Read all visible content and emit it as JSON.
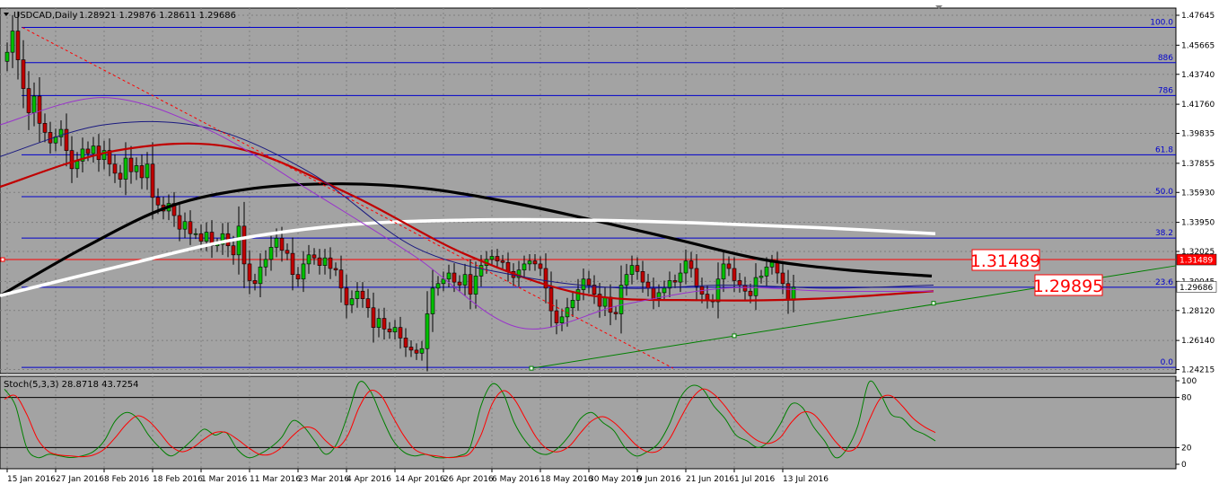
{
  "symbol_label": "USDCAD,Daily",
  "ohlc_label": "1.28921 1.29876 1.28611 1.29686",
  "colors": {
    "background": "#a3a3a3",
    "grid": "#7f7f7f",
    "bull": "#00c000",
    "bear": "#c00000",
    "fib": "#0000cc",
    "ma_black": "#000000",
    "ma_white": "#ffffff",
    "ma_red": "#c00000",
    "ma_navy": "#1a1a80",
    "ma_purple": "#9933cc",
    "trendline": "#008000",
    "stoch_main": "#008000",
    "stoch_signal": "#ff0000",
    "price_tag": "#ff0000"
  },
  "chart_data": [
    {
      "type": "candlestick",
      "title": "USDCAD,Daily",
      "ylim": [
        1.2395,
        1.4812
      ],
      "y_ticks": [
        "1.47645",
        "1.45665",
        "1.43740",
        "1.41760",
        "1.39835",
        "1.37855",
        "1.35930",
        "1.33950",
        "1.32025",
        "1.30045",
        "1.28120",
        "1.26140",
        "1.24215"
      ],
      "x_tick_labels": [
        "15 Jan 2016",
        "27 Jan 2016",
        "8 Feb 2016",
        "18 Feb 2016",
        "1 Mar 2016",
        "11 Mar 2016",
        "23 Mar 2016",
        "4 Apr 2016",
        "14 Apr 2016",
        "26 Apr 2016",
        "6 May 2016",
        "18 May 2016",
        "30 May 2016",
        "9 Jun 2016",
        "21 Jun 2016",
        "1 Jul 2016",
        "13 Jul 2016"
      ],
      "x_tick_index": [
        0,
        9,
        18,
        27,
        36,
        45,
        54,
        63,
        72,
        81,
        90,
        99,
        108,
        117,
        126,
        135,
        144
      ],
      "close": [
        1.452,
        1.466,
        1.447,
        1.428,
        1.412,
        1.423,
        1.405,
        1.399,
        1.392,
        1.396,
        1.401,
        1.387,
        1.375,
        1.38,
        1.388,
        1.385,
        1.39,
        1.381,
        1.387,
        1.378,
        1.372,
        1.368,
        1.382,
        1.373,
        1.377,
        1.369,
        1.378,
        1.356,
        1.351,
        1.347,
        1.352,
        1.344,
        1.335,
        1.34,
        1.332,
        1.332,
        1.327,
        1.333,
        1.324,
        1.325,
        1.332,
        1.324,
        1.318,
        1.337,
        1.312,
        1.301,
        1.299,
        1.31,
        1.315,
        1.323,
        1.329,
        1.321,
        1.319,
        1.305,
        1.302,
        1.312,
        1.318,
        1.316,
        1.311,
        1.316,
        1.309,
        1.308,
        1.296,
        1.285,
        1.289,
        1.294,
        1.289,
        1.283,
        1.27,
        1.276,
        1.269,
        1.267,
        1.27,
        1.263,
        1.257,
        1.255,
        1.253,
        1.256,
        1.279,
        1.296,
        1.299,
        1.302,
        1.306,
        1.3,
        1.298,
        1.305,
        1.292,
        1.304,
        1.311,
        1.315,
        1.317,
        1.314,
        1.313,
        1.307,
        1.303,
        1.308,
        1.312,
        1.314,
        1.312,
        1.309,
        1.296,
        1.281,
        1.273,
        1.277,
        1.283,
        1.288,
        1.295,
        1.302,
        1.298,
        1.292,
        1.284,
        1.29,
        1.28,
        1.279,
        1.298,
        1.305,
        1.311,
        1.307,
        1.3,
        1.296,
        1.289,
        1.293,
        1.296,
        1.301,
        1.3,
        1.306,
        1.314,
        1.309,
        1.297,
        1.292,
        1.288,
        1.287,
        1.302,
        1.312,
        1.309,
        1.301,
        1.298,
        1.294,
        1.291,
        1.303,
        1.304,
        1.31,
        1.313,
        1.306,
        1.299,
        1.288,
        1.2969
      ],
      "overlays": [
        {
          "name": "ma-black-200",
          "values": [
            1.291,
            1.323,
            1.35,
            1.362,
            1.365,
            1.362,
            1.353,
            1.341,
            1.328,
            1.315,
            1.308,
            1.304
          ]
        },
        {
          "name": "ma-white-100",
          "values": [
            1.291,
            1.31,
            1.328,
            1.338,
            1.341,
            1.341,
            1.339,
            1.336,
            1.332
          ]
        },
        {
          "name": "ma-red-50",
          "values": [
            1.363,
            1.387,
            1.389,
            1.358,
            1.318,
            1.292,
            1.288,
            1.289,
            1.294
          ]
        },
        {
          "name": "ma-navy-20",
          "values": [
            1.383,
            1.404,
            1.402,
            1.372,
            1.323,
            1.304,
            1.296,
            1.298,
            1.296,
            1.298
          ]
        },
        {
          "name": "ma-purple-10",
          "values": [
            1.404,
            1.422,
            1.401,
            1.36,
            1.317,
            1.27,
            1.285,
            1.296,
            1.294,
            1.294
          ]
        }
      ],
      "fib_levels": [
        {
          "label": "100.0",
          "price": 1.4684
        },
        {
          "label": "886",
          "price": 1.4451
        },
        {
          "label": "786",
          "price": 1.4234
        },
        {
          "label": "61.8",
          "price": 1.3842
        },
        {
          "label": "50.0",
          "price": 1.3565
        },
        {
          "label": "38.2",
          "price": 1.3291
        },
        {
          "label": "23.6",
          "price": 1.2966
        },
        {
          "label": "0.0",
          "price": 1.2436
        }
      ],
      "price_tags": [
        {
          "label": "1.31489",
          "price": 1.31489
        },
        {
          "label": "1.29686",
          "price": 1.29686
        }
      ],
      "annotations": [
        "1.31489",
        "1.29895"
      ]
    },
    {
      "type": "line",
      "title": "Stoch(5,3,3) 28.8718 43.7254",
      "ylim": [
        0,
        100
      ],
      "y_ticks": [
        "100",
        "80",
        "20",
        "0"
      ],
      "levels": [
        80,
        20
      ],
      "series": [
        {
          "name": "main",
          "values": [
            90,
            70,
            20,
            8,
            12,
            10,
            8,
            10,
            15,
            28,
            52,
            62,
            55,
            35,
            20,
            10,
            18,
            30,
            42,
            35,
            38,
            18,
            8,
            12,
            20,
            32,
            52,
            45,
            28,
            12,
            25,
            60,
            98,
            88,
            58,
            30,
            15,
            10,
            12,
            8,
            8,
            10,
            20,
            70,
            96,
            85,
            50,
            28,
            15,
            12,
            20,
            35,
            55,
            62,
            50,
            40,
            20,
            10,
            15,
            25,
            48,
            80,
            94,
            90,
            70,
            55,
            35,
            28,
            20,
            28,
            48,
            72,
            68,
            45,
            28,
            8,
            18,
            46,
            98,
            85,
            60,
            55,
            42,
            36,
            28
          ]
        },
        {
          "name": "signal",
          "values": [
            78,
            82,
            60,
            30,
            15,
            11,
            10,
            9,
            11,
            18,
            32,
            48,
            58,
            52,
            38,
            22,
            15,
            20,
            30,
            38,
            38,
            30,
            20,
            12,
            12,
            20,
            34,
            44,
            42,
            28,
            20,
            35,
            68,
            88,
            82,
            58,
            35,
            18,
            12,
            10,
            8,
            9,
            13,
            35,
            72,
            88,
            78,
            55,
            32,
            18,
            15,
            22,
            38,
            52,
            57,
            50,
            37,
            23,
            15,
            16,
            30,
            55,
            78,
            90,
            84,
            70,
            52,
            38,
            28,
            25,
            32,
            50,
            62,
            60,
            45,
            27,
            16,
            22,
            52,
            78,
            82,
            70,
            55,
            45,
            38
          ]
        }
      ]
    }
  ]
}
